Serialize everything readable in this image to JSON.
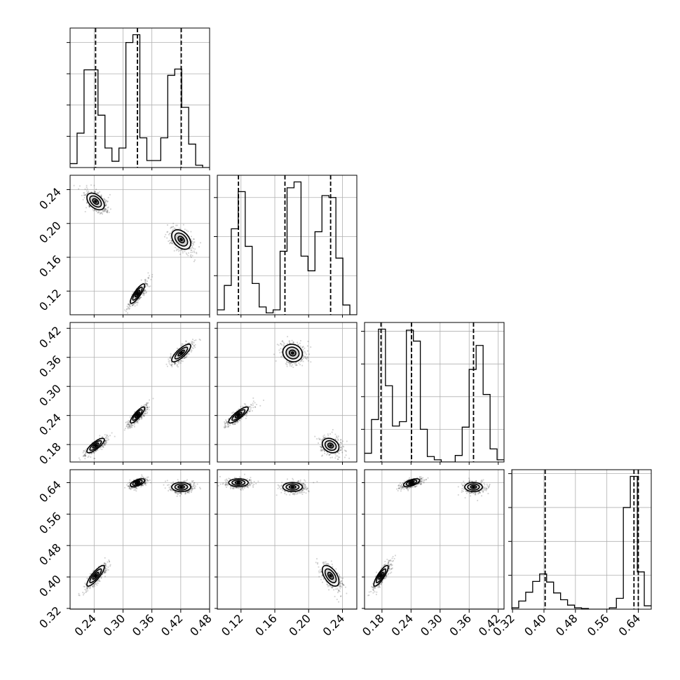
{
  "chart_data": {
    "type": "corner",
    "title": "",
    "grid": true,
    "colors": {
      "axes": "#000000",
      "grid": "#b0b0b0",
      "hist": "#000000",
      "marker": "#000000"
    },
    "variables": [
      {
        "range": [
          0.19,
          0.48
        ],
        "ticks": [
          0.24,
          0.3,
          0.36,
          0.42,
          0.48
        ],
        "tick_labels": [
          "0.24",
          "0.30",
          "0.36",
          "0.42",
          "0.48"
        ],
        "hist_y_ticks": [
          40,
          80,
          120,
          160
        ],
        "markers": [
          0.243,
          0.33,
          0.421
        ],
        "hist": {
          "edges": [
            0.19,
            0.2045,
            0.219,
            0.2335,
            0.248,
            0.2625,
            0.277,
            0.2915,
            0.306,
            0.3205,
            0.335,
            0.3495,
            0.364,
            0.3785,
            0.393,
            0.4075,
            0.422,
            0.4365,
            0.451,
            0.4655,
            0.48
          ],
          "counts": [
            5,
            44,
            125,
            125,
            67,
            25,
            8,
            25,
            160,
            170,
            38,
            9,
            9,
            38,
            118,
            126,
            77,
            30,
            3,
            0
          ]
        }
      },
      {
        "range": [
          0.092,
          0.257
        ],
        "ticks": [
          0.12,
          0.16,
          0.2,
          0.24
        ],
        "tick_labels": [
          "0.12",
          "0.16",
          "0.20",
          "0.24"
        ],
        "hist_y_ticks": [
          40,
          80,
          120
        ],
        "markers": [
          0.117,
          0.172,
          0.226
        ],
        "hist": {
          "edges": [
            0.092,
            0.10025,
            0.1085,
            0.11675,
            0.125,
            0.13325,
            0.1415,
            0.14975,
            0.158,
            0.16625,
            0.1745,
            0.18275,
            0.191,
            0.19925,
            0.2075,
            0.21575,
            0.224,
            0.23225,
            0.2405,
            0.24875,
            0.257
          ],
          "counts": [
            5,
            30,
            88,
            126,
            70,
            32,
            8,
            2,
            5,
            65,
            130,
            136,
            60,
            45,
            85,
            122,
            120,
            58,
            10,
            0
          ]
        }
      },
      {
        "range": [
          0.144,
          0.432
        ],
        "ticks": [
          0.18,
          0.24,
          0.3,
          0.36,
          0.42
        ],
        "tick_labels": [
          "0.18",
          "0.24",
          "0.30",
          "0.36",
          "0.42"
        ],
        "hist_y_ticks": [
          30,
          60,
          90,
          120
        ],
        "markers": [
          0.178,
          0.241,
          0.369
        ],
        "hist": {
          "edges": [
            0.144,
            0.1584,
            0.1728,
            0.1872,
            0.2016,
            0.216,
            0.2304,
            0.2448,
            0.2592,
            0.2736,
            0.288,
            0.3024,
            0.3168,
            0.3312,
            0.3456,
            0.36,
            0.3744,
            0.3888,
            0.4032,
            0.4176,
            0.432
          ],
          "counts": [
            8,
            39,
            122,
            70,
            33,
            37,
            121,
            111,
            30,
            5,
            2,
            0,
            0,
            6,
            32,
            85,
            107,
            62,
            12,
            2
          ]
        }
      },
      {
        "range": [
          0.318,
          0.673
        ],
        "ticks": [
          0.32,
          0.4,
          0.48,
          0.56,
          0.64
        ],
        "tick_labels": [
          "0.32",
          "0.40",
          "0.48",
          "0.56",
          "0.64"
        ],
        "hist_y_ticks": [
          50,
          100,
          150,
          200
        ],
        "markers": [
          0.403,
          0.629,
          0.64
        ],
        "hist": {
          "edges": [
            0.318,
            0.33575,
            0.3535,
            0.37125,
            0.389,
            0.40675,
            0.4245,
            0.44225,
            0.46,
            0.47775,
            0.4955,
            0.51325,
            0.531,
            0.54875,
            0.5665,
            0.58425,
            0.602,
            0.61975,
            0.6375,
            0.65525,
            0.673
          ],
          "counts": [
            2,
            12,
            25,
            41,
            52,
            40,
            24,
            14,
            6,
            2,
            1,
            0,
            0,
            0,
            2,
            16,
            150,
            196,
            55,
            5
          ]
        }
      }
    ],
    "clusters": [
      {
        "means": [
          0.243,
          0.226,
          0.178,
          0.403
        ],
        "sds": [
          0.011,
          0.006,
          0.009,
          0.016
        ],
        "corr": {
          "0,1": -0.45,
          "0,2": 0.8,
          "0,3": 0.85,
          "1,2": -0.25,
          "1,3": -0.55,
          "2,3": 0.85
        }
      },
      {
        "means": [
          0.33,
          0.117,
          0.241,
          0.64
        ],
        "sds": [
          0.009,
          0.007,
          0.01,
          0.006
        ],
        "corr": {
          "0,1": 0.85,
          "0,2": 0.85,
          "0,3": 0.6,
          "1,2": 0.85,
          "1,3": 0.0,
          "2,3": 0.6
        }
      },
      {
        "means": [
          0.421,
          0.181,
          0.369,
          0.629
        ],
        "sds": [
          0.012,
          0.007,
          0.011,
          0.007
        ],
        "corr": {
          "0,1": -0.4,
          "0,2": 0.8,
          "0,3": 0.0,
          "1,2": -0.1,
          "1,3": 0.0,
          "2,3": 0.0
        }
      }
    ]
  }
}
